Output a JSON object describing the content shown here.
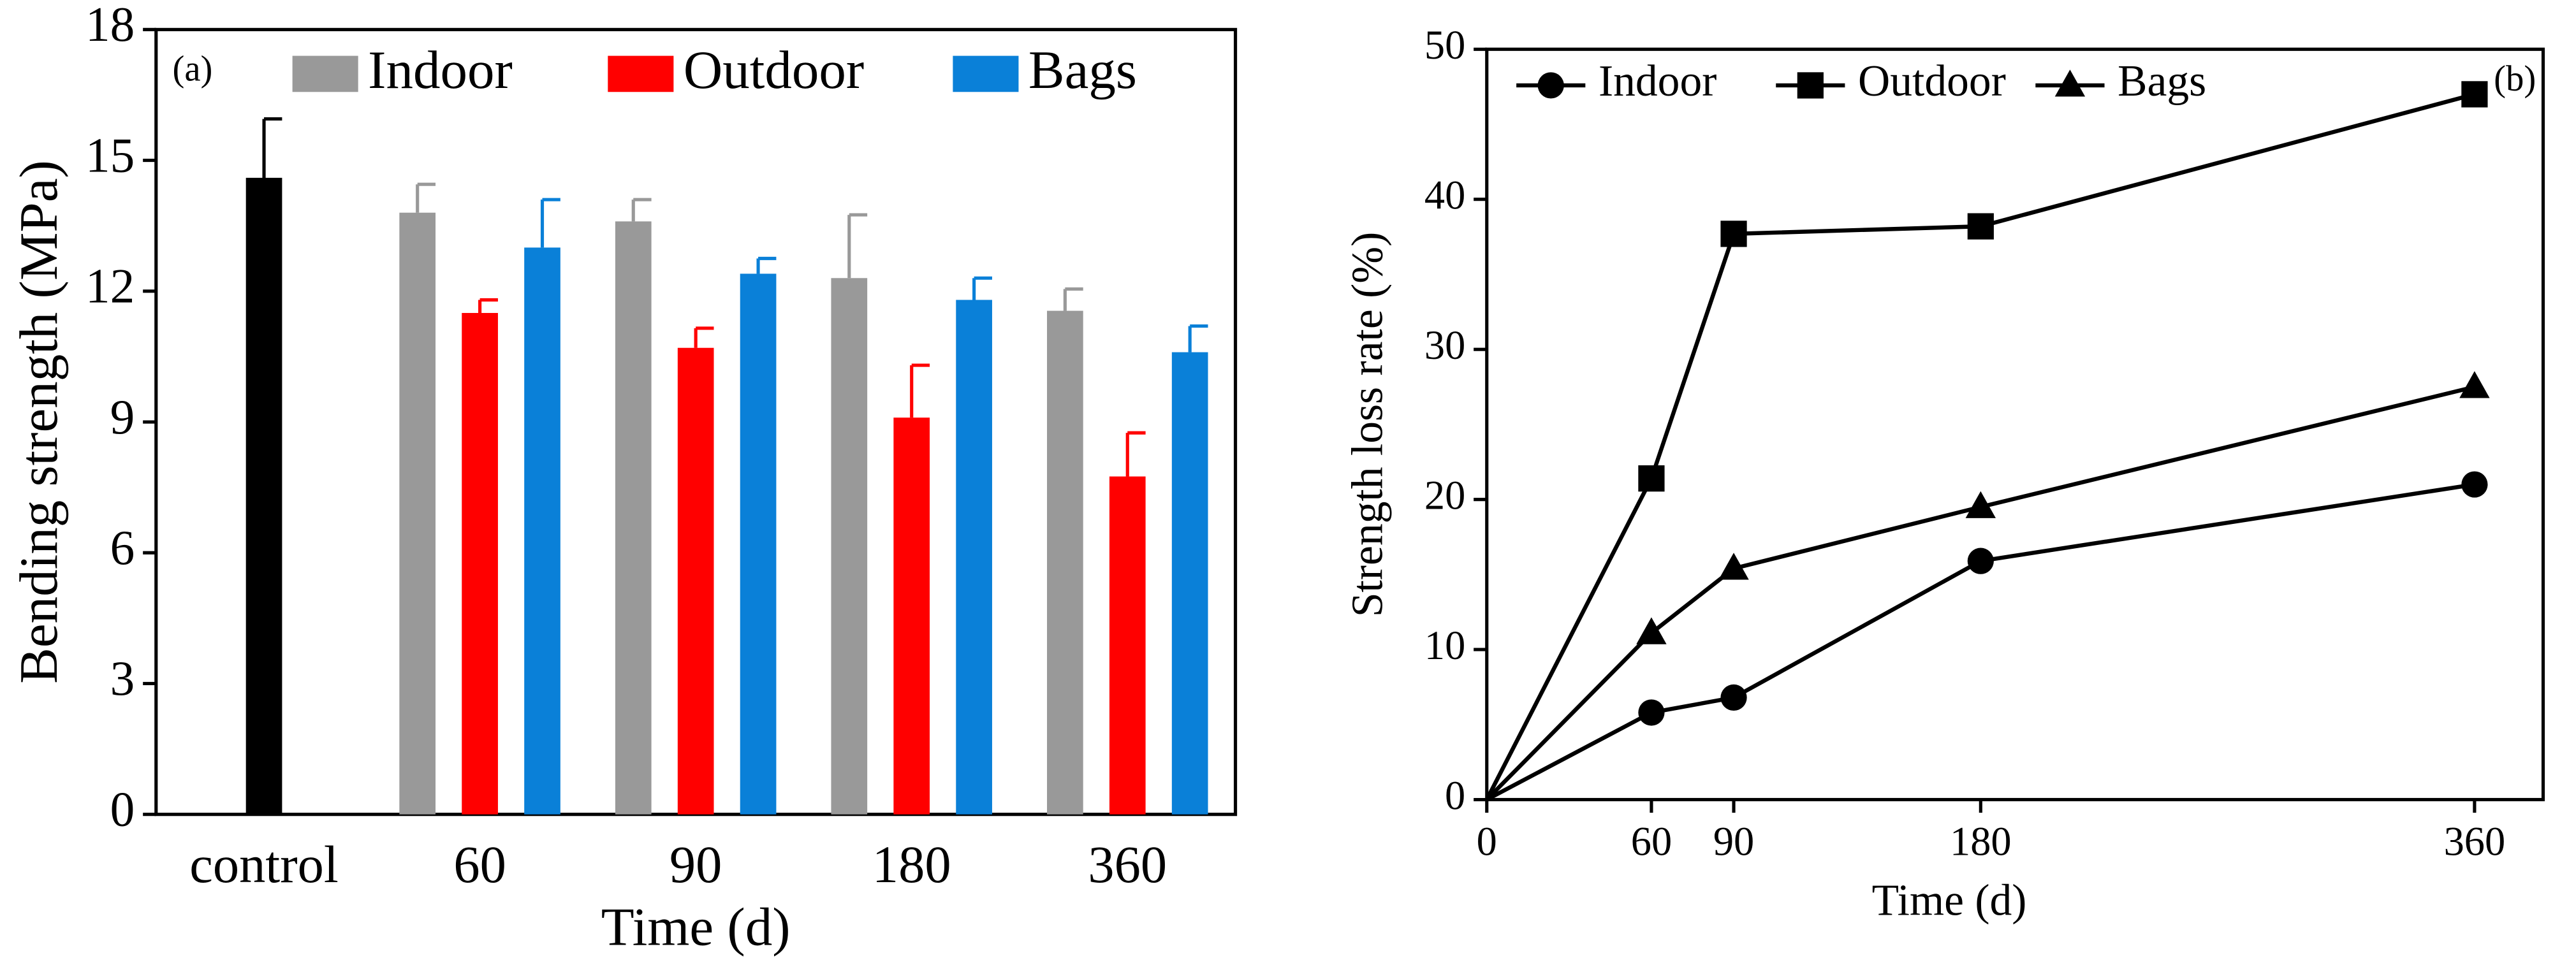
{
  "chart_data": [
    {
      "type": "bar",
      "annotation": "(a)",
      "xlabel": "Time (d)",
      "ylabel": "Bending strength (MPa)",
      "categories": [
        "control",
        "60",
        "90",
        "180",
        "360"
      ],
      "series": [
        {
          "color": "#000000",
          "values": [
            14.6,
            null,
            null,
            null,
            null
          ],
          "errors": [
            1.35,
            null,
            null,
            null,
            null
          ]
        },
        {
          "name": "Indoor",
          "color": "#999999",
          "values": [
            null,
            13.8,
            13.6,
            12.3,
            11.55
          ],
          "errors": [
            null,
            0.65,
            0.5,
            1.45,
            0.5
          ]
        },
        {
          "name": "Outdoor",
          "color": "#ff0000",
          "values": [
            null,
            11.5,
            10.7,
            9.1,
            7.75
          ],
          "errors": [
            null,
            0.3,
            0.45,
            1.2,
            1.0
          ]
        },
        {
          "name": "Bags",
          "color": "#0a80d8",
          "values": [
            null,
            13.0,
            12.4,
            11.8,
            10.6
          ],
          "errors": [
            null,
            1.1,
            0.35,
            0.5,
            0.6
          ]
        }
      ],
      "ylim": [
        0,
        18
      ],
      "yticks": [
        0,
        3,
        6,
        9,
        12,
        15,
        18
      ],
      "legend": "top"
    },
    {
      "type": "line",
      "annotation": "(b)",
      "xlabel": "Time (d)",
      "ylabel": "Strength loss rate (%)",
      "x": [
        0,
        60,
        90,
        180,
        360
      ],
      "series": [
        {
          "name": "Indoor",
          "color": "#000000",
          "marker": "circle",
          "values": [
            0,
            5.8,
            6.8,
            15.9,
            21.0
          ]
        },
        {
          "name": "Outdoor",
          "color": "#000000",
          "marker": "square",
          "values": [
            0,
            21.4,
            37.7,
            38.2,
            47.0
          ]
        },
        {
          "name": "Bags",
          "color": "#000000",
          "marker": "triangle",
          "values": [
            0,
            11.1,
            15.4,
            19.5,
            27.5
          ]
        }
      ],
      "xlim": [
        0,
        385
      ],
      "xticks": [
        0,
        60,
        90,
        180,
        360
      ],
      "ylim": [
        0,
        50
      ],
      "yticks": [
        0,
        10,
        20,
        30,
        40,
        50
      ],
      "legend": "top left"
    }
  ]
}
